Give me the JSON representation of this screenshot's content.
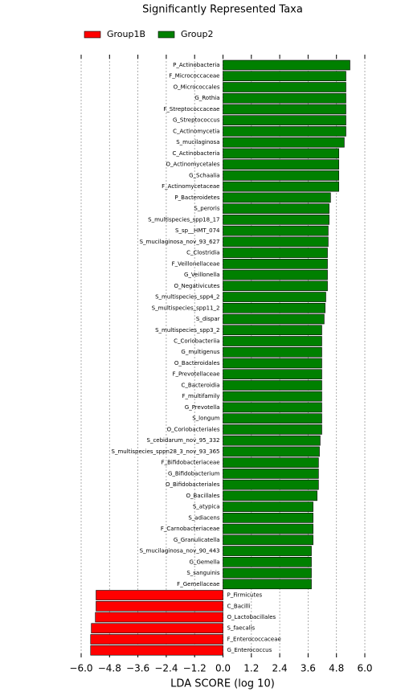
{
  "chart_data": {
    "type": "barh",
    "title": "Significantly Represented Taxa",
    "xlabel": "LDA SCORE (log 10)",
    "categories": [
      "P_Actinobacteria",
      "F_Micrococcaceae",
      "O_Micrococcales",
      "G_Rothia",
      "F_Streptococcaceae",
      "G_Streptococcus",
      "C_Actinomycetia",
      "S_mucilaginosa",
      "C_Actinobacteria",
      "O_Actinomycetales",
      "G_Schaalia",
      "F_Actinomycetaceae",
      "P_Bacteroidetes",
      "S_peroris",
      "S_multispecies_spp18_17",
      "S_sp__HMT_074",
      "S_mucilaginosa_nov_93_627",
      "C_Clostridia",
      "F_Veillonellaceae",
      "G_Veillonella",
      "O_Negativicutes",
      "S_multispecies_spp4_2",
      "S_multispecies_spp11_2",
      "S_dispar",
      "S_multispecies_spp3_2",
      "C_Coriobacteriia",
      "G_multigenus",
      "O_Bacteroidales",
      "F_Prevotellaceae",
      "C_Bacteroidia",
      "F_multifamily",
      "G_Prevotella",
      "S_longum",
      "O_Coriobacteriales",
      "S_cebidarum_nov_95_332",
      "S_multispecies_sppn28_3_nov_93_365",
      "F_Bifidobacteriaceae",
      "G_Bifidobacterium",
      "O_Bifidobacteriales",
      "O_Bacillales",
      "S_atypica",
      "S_adiacens",
      "F_Carnobacteriaceae",
      "G_Granulicatella",
      "S_mucilaginosa_nov_90_443",
      "G_Gemella",
      "S_sanguinis",
      "F_Gemellaceae",
      "P_Firmicutes",
      "C_Bacilli",
      "O_Lactobacillales",
      "S_faecalis",
      "F_Enterococcaceae",
      "G_Enterococcus"
    ],
    "series": [
      {
        "name": "Group1B",
        "color": "#ff0000",
        "values": [
          null,
          null,
          null,
          null,
          null,
          null,
          null,
          null,
          null,
          null,
          null,
          null,
          null,
          null,
          null,
          null,
          null,
          null,
          null,
          null,
          null,
          null,
          null,
          null,
          null,
          null,
          null,
          null,
          null,
          null,
          null,
          null,
          null,
          null,
          null,
          null,
          null,
          null,
          null,
          null,
          null,
          null,
          null,
          null,
          null,
          null,
          null,
          null,
          -5.37,
          -5.37,
          -5.4,
          -5.57,
          -5.6,
          -5.6
        ]
      },
      {
        "name": "Group2",
        "color": "#008000",
        "values": [
          5.37,
          5.2,
          5.2,
          5.2,
          5.2,
          5.2,
          5.2,
          5.13,
          4.9,
          4.9,
          4.9,
          4.9,
          4.55,
          4.49,
          4.49,
          4.45,
          4.45,
          4.42,
          4.42,
          4.42,
          4.42,
          4.35,
          4.32,
          4.28,
          4.18,
          4.18,
          4.18,
          4.18,
          4.18,
          4.18,
          4.18,
          4.18,
          4.18,
          4.18,
          4.11,
          4.08,
          4.04,
          4.04,
          4.04,
          3.98,
          3.81,
          3.81,
          3.81,
          3.81,
          3.74,
          3.74,
          3.74,
          3.74,
          null,
          null,
          null,
          null,
          null,
          null
        ]
      }
    ],
    "xlim": [
      -6,
      6
    ],
    "xticks": [
      {
        "value": -6,
        "label": "−6.0"
      },
      {
        "value": -4.8,
        "label": "−4.8"
      },
      {
        "value": -3.6,
        "label": "−3.6"
      },
      {
        "value": -2.4,
        "label": "−2.4"
      },
      {
        "value": -1.2,
        "label": "−1.2"
      },
      {
        "value": 0,
        "label": "0.0"
      },
      {
        "value": 1.2,
        "label": "1.2"
      },
      {
        "value": 2.4,
        "label": "2.4"
      },
      {
        "value": 3.6,
        "label": "3.6"
      },
      {
        "value": 4.8,
        "label": "4.8"
      },
      {
        "value": 6,
        "label": "6.0"
      }
    ],
    "grid": true
  }
}
